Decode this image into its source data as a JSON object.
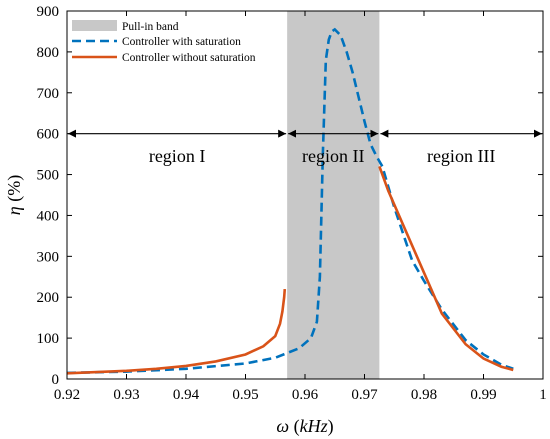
{
  "chart_data": {
    "type": "line",
    "xlabel_symbol": "ω",
    "xlabel_unit": "kHz",
    "ylabel_symbol": "η",
    "ylabel_unit": "(%)",
    "xlim": [
      0.92,
      1.0
    ],
    "ylim": [
      0,
      900
    ],
    "xticks": [
      0.92,
      0.93,
      0.94,
      0.95,
      0.96,
      0.97,
      0.98,
      0.99,
      1.0
    ],
    "xtick_labels": [
      "0.92",
      "0.93",
      "0.94",
      "0.95",
      "0.96",
      "0.97",
      "0.98",
      "0.99",
      "1"
    ],
    "yticks": [
      0,
      100,
      200,
      300,
      400,
      500,
      600,
      700,
      800,
      900
    ],
    "ytick_labels": [
      "0",
      "100",
      "200",
      "300",
      "400",
      "500",
      "600",
      "700",
      "800",
      "900"
    ],
    "grid": false,
    "legend_position": "top-left",
    "band": {
      "name": "Pull-in band",
      "x_start": 0.957,
      "x_end": 0.9725,
      "color": "#c8c8c8"
    },
    "series": [
      {
        "name": "Controller with saturation",
        "style": "dashed",
        "color": "#0072BD",
        "x": [
          0.92,
          0.93,
          0.94,
          0.95,
          0.955,
          0.959,
          0.961,
          0.962,
          0.9625,
          0.963,
          0.9635,
          0.964,
          0.9645,
          0.965,
          0.966,
          0.967,
          0.968,
          0.969,
          0.97,
          0.971,
          0.972,
          0.973,
          0.975,
          0.978,
          0.98,
          0.983,
          0.987,
          0.99,
          0.993,
          0.995
        ],
        "y": [
          15,
          18,
          25,
          38,
          52,
          75,
          100,
          140,
          250,
          550,
          780,
          830,
          850,
          855,
          840,
          800,
          750,
          690,
          630,
          575,
          545,
          520,
          420,
          290,
          240,
          170,
          95,
          60,
          35,
          25
        ]
      },
      {
        "name": "Controller without saturation",
        "style": "solid",
        "color": "#D95319",
        "x": [
          0.92,
          0.93,
          0.935,
          0.94,
          0.945,
          0.95,
          0.953,
          0.955,
          0.9558,
          0.9562,
          0.9565,
          0.9566
        ],
        "y": [
          14,
          20,
          25,
          32,
          43,
          60,
          80,
          105,
          135,
          165,
          200,
          220
        ],
        "x2": [
          0.9725,
          0.974,
          0.977,
          0.98,
          0.983,
          0.987,
          0.99,
          0.993,
          0.995
        ],
        "y2": [
          520,
          460,
          360,
          260,
          160,
          85,
          50,
          30,
          22
        ]
      }
    ],
    "annotations": [
      {
        "text": "region I",
        "x_start": 0.92,
        "x_end": 0.957,
        "arrow_y": 600,
        "label_y": 545
      },
      {
        "text": "region II",
        "x_start": 0.957,
        "x_end": 0.9725,
        "arrow_y": 600,
        "label_y": 545
      },
      {
        "text": "region III",
        "x_start": 0.9725,
        "x_end": 1.0,
        "arrow_y": 600,
        "label_y": 545
      }
    ]
  }
}
